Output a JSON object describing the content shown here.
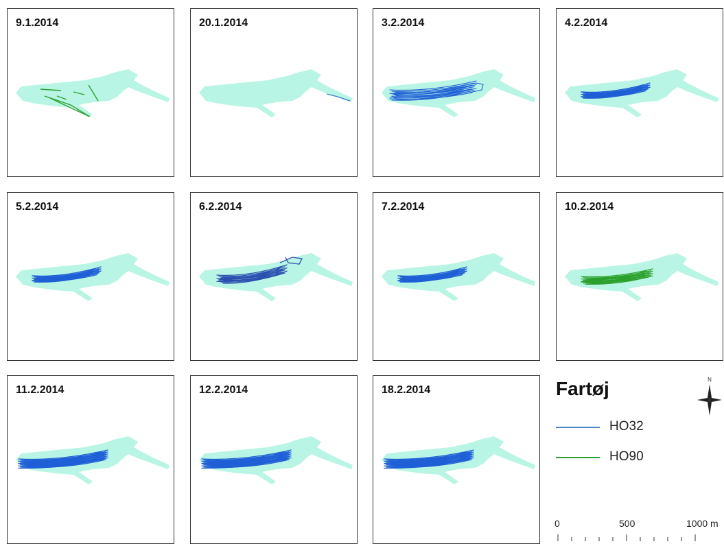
{
  "panels": [
    {
      "date": "9.1.2014",
      "vessel": "HO90"
    },
    {
      "date": "20.1.2014",
      "vessel": "HO32"
    },
    {
      "date": "3.2.2014",
      "vessel": "HO32"
    },
    {
      "date": "4.2.2014",
      "vessel": "HO32"
    },
    {
      "date": "5.2.2014",
      "vessel": "HO32"
    },
    {
      "date": "6.2.2014",
      "vessel": "HO32"
    },
    {
      "date": "7.2.2014",
      "vessel": "HO32"
    },
    {
      "date": "10.2.2014",
      "vessel": "HO90"
    },
    {
      "date": "11.2.2014",
      "vessel": "HO32"
    },
    {
      "date": "12.2.2014",
      "vessel": "HO32"
    },
    {
      "date": "18.2.2014",
      "vessel": "HO32"
    }
  ],
  "legend": {
    "title": "Fartøj",
    "items": [
      {
        "label": "HO32",
        "color": "#4a86c8"
      },
      {
        "label": "HO90",
        "color": "#2ca02c"
      }
    ]
  },
  "scale": {
    "labels": [
      "0",
      "500",
      "1000 m"
    ]
  },
  "colors": {
    "area": "#b8f5e4",
    "ho32": "#1f5fd6",
    "ho90": "#2ca02c",
    "ho32_light": "#3a7bd5"
  },
  "north_arrow": {
    "label": "N"
  }
}
